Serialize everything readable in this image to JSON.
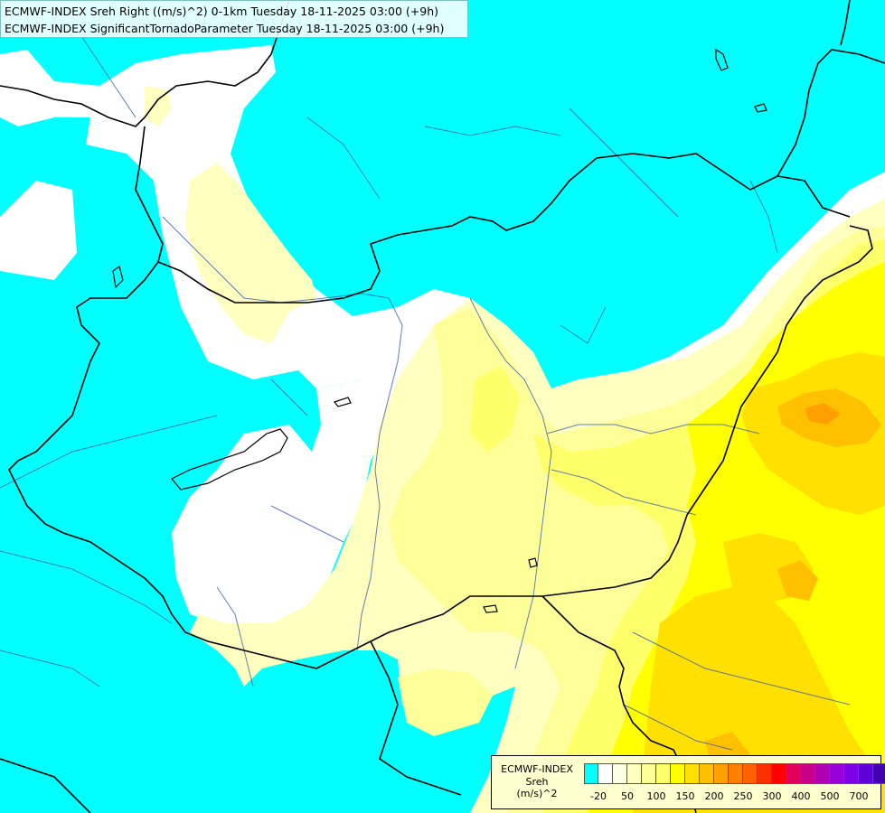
{
  "header": {
    "line1": "ECMWF-INDEX Sreh Right ((m/s)^2) 0-1km Tuesday 18-11-2025 03:00 (+9h)",
    "line2": "ECMWF-INDEX SignificantTornadoParameter Tuesday 18-11-2025 03:00 (+9h)"
  },
  "legend": {
    "title_line1": "ECMWF-INDEX",
    "title_line2": "Sreh",
    "title_line3": "(m/s)^2",
    "colors": [
      "#00ffff",
      "#ffffff",
      "#ffffe6",
      "#ffffc0",
      "#ffff9a",
      "#ffff6a",
      "#ffff00",
      "#ffe000",
      "#ffc000",
      "#ffa000",
      "#ff8000",
      "#ff6000",
      "#ff3000",
      "#ff0000",
      "#e0005a",
      "#c8008c",
      "#b000b4",
      "#9800d8",
      "#7c00e8",
      "#6000d8",
      "#4000b0",
      "#18008c"
    ],
    "ticks": [
      "-20",
      "50",
      "100",
      "150",
      "200",
      "250",
      "300",
      "400",
      "500",
      "700"
    ]
  },
  "map": {
    "field_colors": {
      "cyan": "#00ffff",
      "white": "#ffffff",
      "pale_yellow": "#ffffc0",
      "light_yellow": "#ffff9a",
      "yellow": "#ffff6a",
      "bright_yellow": "#ffff00",
      "gold": "#ffe000",
      "amber": "#ffc000",
      "orange": "#ffa000"
    },
    "border_color": "#000000",
    "river_color": "#3a5fb0"
  }
}
